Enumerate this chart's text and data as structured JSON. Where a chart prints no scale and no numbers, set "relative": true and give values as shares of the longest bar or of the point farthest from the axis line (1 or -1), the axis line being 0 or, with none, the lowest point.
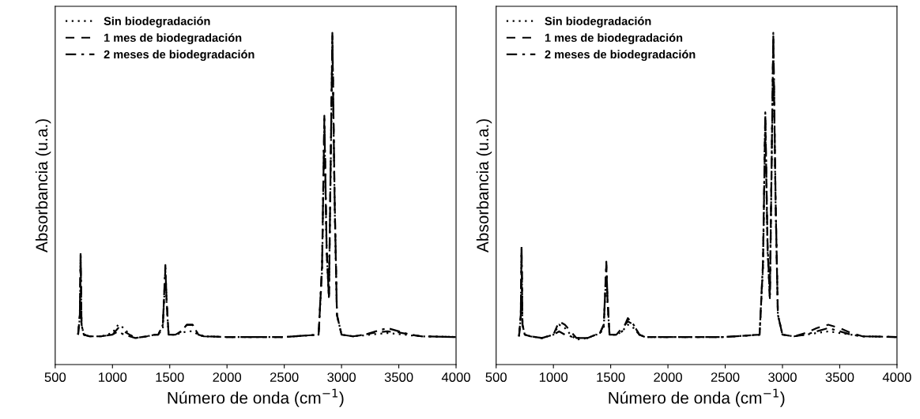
{
  "chart_data": [
    {
      "type": "line",
      "relative": true,
      "xlabel": "Número de onda (cm$^{−1}$)",
      "ylabel": "Absorbancia (u.a.)",
      "xlim": [
        500,
        4000
      ],
      "xticks": [
        500,
        1000,
        1500,
        2000,
        2500,
        3000,
        3500,
        4000
      ],
      "tick_labels": "x",
      "grid": false,
      "legend": "top left",
      "x": [
        700,
        715,
        722,
        730,
        750,
        800,
        900,
        1000,
        1050,
        1100,
        1150,
        1200,
        1300,
        1370,
        1400,
        1440,
        1462,
        1472,
        1490,
        1550,
        1600,
        1650,
        1700,
        1750,
        1800,
        2000,
        2500,
        2800,
        2830,
        2850,
        2870,
        2890,
        2920,
        2940,
        2960,
        3000,
        3100,
        3200,
        3300,
        3400,
        3500,
        3600,
        3700,
        4000
      ],
      "series": [
        {
          "name": "Sin biodegradación",
          "color": "#000000",
          "line_style": "dotted",
          "values": [
            0.09,
            0.14,
            0.32,
            0.12,
            0.09,
            0.085,
            0.085,
            0.095,
            0.12,
            0.11,
            0.09,
            0.08,
            0.085,
            0.09,
            0.09,
            0.11,
            0.28,
            0.19,
            0.09,
            0.09,
            0.095,
            0.1,
            0.1,
            0.09,
            0.085,
            0.083,
            0.083,
            0.09,
            0.28,
            0.72,
            0.34,
            0.2,
            0.97,
            0.48,
            0.15,
            0.09,
            0.085,
            0.088,
            0.092,
            0.095,
            0.092,
            0.088,
            0.085,
            0.083
          ]
        },
        {
          "name": "1 mes de biodegradación",
          "color": "#000000",
          "line_style": "dashed",
          "values": [
            0.09,
            0.15,
            0.33,
            0.12,
            0.09,
            0.085,
            0.085,
            0.09,
            0.11,
            0.1,
            0.09,
            0.08,
            0.085,
            0.09,
            0.09,
            0.12,
            0.29,
            0.2,
            0.09,
            0.09,
            0.1,
            0.12,
            0.12,
            0.09,
            0.085,
            0.083,
            0.083,
            0.09,
            0.29,
            0.74,
            0.35,
            0.2,
            0.99,
            0.49,
            0.15,
            0.09,
            0.085,
            0.09,
            0.097,
            0.1,
            0.097,
            0.09,
            0.085,
            0.083
          ]
        },
        {
          "name": "2 meses de biodegradación",
          "color": "#000000",
          "line_style": "dashdot",
          "values": [
            0.09,
            0.15,
            0.34,
            0.12,
            0.09,
            0.085,
            0.085,
            0.09,
            0.1,
            0.09,
            0.085,
            0.08,
            0.085,
            0.09,
            0.09,
            0.12,
            0.3,
            0.2,
            0.09,
            0.09,
            0.1,
            0.12,
            0.12,
            0.09,
            0.085,
            0.083,
            0.083,
            0.09,
            0.3,
            0.75,
            0.35,
            0.2,
            1.0,
            0.5,
            0.15,
            0.09,
            0.085,
            0.09,
            0.1,
            0.11,
            0.1,
            0.09,
            0.085,
            0.083
          ]
        }
      ]
    },
    {
      "type": "line",
      "relative": true,
      "xlabel": "Número de onda (cm$^{−1}$)",
      "ylabel": "Absorbancia (u.a.)",
      "xlim": [
        500,
        4000
      ],
      "xticks": [
        500,
        1000,
        1500,
        2000,
        2500,
        3000,
        3500,
        4000
      ],
      "tick_labels": "x",
      "grid": false,
      "legend": "top left",
      "x": [
        700,
        715,
        722,
        730,
        750,
        800,
        900,
        1000,
        1050,
        1100,
        1150,
        1200,
        1300,
        1370,
        1400,
        1440,
        1462,
        1472,
        1490,
        1550,
        1600,
        1650,
        1700,
        1750,
        1800,
        2000,
        2500,
        2800,
        2830,
        2850,
        2870,
        2890,
        2920,
        2940,
        2960,
        3000,
        3100,
        3200,
        3300,
        3400,
        3500,
        3600,
        3700,
        4000
      ],
      "series": [
        {
          "name": "Sin biodegradación",
          "color": "#000000",
          "line_style": "dotted",
          "values": [
            0.085,
            0.14,
            0.34,
            0.12,
            0.09,
            0.085,
            0.08,
            0.09,
            0.12,
            0.11,
            0.09,
            0.075,
            0.08,
            0.09,
            0.09,
            0.11,
            0.29,
            0.19,
            0.09,
            0.09,
            0.1,
            0.12,
            0.11,
            0.09,
            0.083,
            0.083,
            0.083,
            0.09,
            0.29,
            0.73,
            0.34,
            0.2,
            0.97,
            0.48,
            0.15,
            0.09,
            0.085,
            0.09,
            0.095,
            0.1,
            0.095,
            0.09,
            0.085,
            0.083
          ]
        },
        {
          "name": "1 mes de biodegradación",
          "color": "#000000",
          "line_style": "dashed",
          "values": [
            0.085,
            0.15,
            0.35,
            0.12,
            0.09,
            0.085,
            0.08,
            0.09,
            0.13,
            0.12,
            0.1,
            0.08,
            0.08,
            0.09,
            0.09,
            0.12,
            0.3,
            0.2,
            0.09,
            0.09,
            0.11,
            0.13,
            0.12,
            0.09,
            0.083,
            0.083,
            0.083,
            0.09,
            0.3,
            0.75,
            0.35,
            0.2,
            0.99,
            0.49,
            0.15,
            0.09,
            0.085,
            0.095,
            0.11,
            0.12,
            0.11,
            0.095,
            0.085,
            0.083
          ]
        },
        {
          "name": "2 meses de biodegradación",
          "color": "#000000",
          "line_style": "dashdot",
          "values": [
            0.085,
            0.15,
            0.36,
            0.12,
            0.09,
            0.085,
            0.08,
            0.09,
            0.1,
            0.09,
            0.085,
            0.08,
            0.08,
            0.09,
            0.09,
            0.12,
            0.31,
            0.2,
            0.09,
            0.09,
            0.1,
            0.14,
            0.12,
            0.09,
            0.083,
            0.083,
            0.083,
            0.09,
            0.31,
            0.76,
            0.36,
            0.2,
            1.0,
            0.5,
            0.15,
            0.09,
            0.085,
            0.09,
            0.1,
            0.11,
            0.1,
            0.09,
            0.085,
            0.083
          ]
        }
      ]
    }
  ]
}
